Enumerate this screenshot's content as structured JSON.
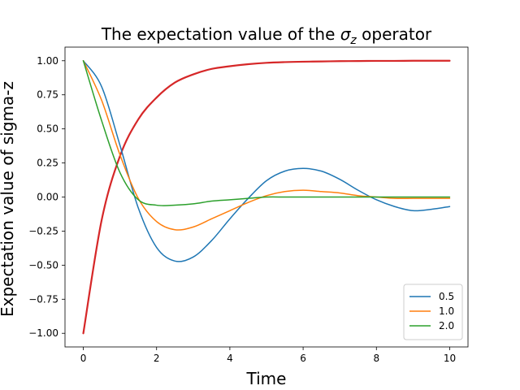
{
  "chart_data": {
    "type": "line",
    "title_main": "The expectation value of the ",
    "title_symbol": "σ",
    "title_subscript": "z",
    "title_end": " operator",
    "xlabel": "Time",
    "ylabel": "Expectation value of sigma-z",
    "xlim": [
      -0.5,
      10.5
    ],
    "ylim": [
      -1.1,
      1.1
    ],
    "xticks": [
      0,
      2,
      4,
      6,
      8,
      10
    ],
    "xtick_labels": [
      "0",
      "2",
      "4",
      "6",
      "8",
      "10"
    ],
    "yticks": [
      -1.0,
      -0.75,
      -0.5,
      -0.25,
      0.0,
      0.25,
      0.5,
      0.75,
      1.0
    ],
    "ytick_labels": [
      "−1.00",
      "−0.75",
      "−0.50",
      "−0.25",
      "0.00",
      "0.25",
      "0.50",
      "0.75",
      "1.00"
    ],
    "grid": false,
    "legend_position": "lower-right",
    "x": [
      0,
      0.5,
      1,
      1.5,
      2,
      2.5,
      3,
      3.5,
      4,
      4.5,
      5,
      5.5,
      6,
      6.5,
      7,
      7.5,
      8,
      8.5,
      9,
      9.5,
      10
    ],
    "series": [
      {
        "name": "0.5",
        "color": "#1f77b4",
        "width": 1.5,
        "in_legend": true,
        "values": [
          1.0,
          0.81,
          0.38,
          -0.08,
          -0.37,
          -0.47,
          -0.44,
          -0.32,
          -0.16,
          -0.01,
          0.12,
          0.19,
          0.21,
          0.19,
          0.13,
          0.05,
          -0.02,
          -0.07,
          -0.1,
          -0.09,
          -0.07
        ]
      },
      {
        "name": "1.0",
        "color": "#ff7f0e",
        "width": 1.5,
        "in_legend": true,
        "values": [
          1.0,
          0.71,
          0.31,
          -0.01,
          -0.18,
          -0.24,
          -0.22,
          -0.16,
          -0.1,
          -0.04,
          0.01,
          0.04,
          0.05,
          0.04,
          0.03,
          0.01,
          0.0,
          -0.01,
          -0.01,
          -0.01,
          -0.01
        ]
      },
      {
        "name": "2.0",
        "color": "#2ca02c",
        "width": 1.5,
        "in_legend": true,
        "values": [
          1.0,
          0.56,
          0.18,
          -0.02,
          -0.06,
          -0.06,
          -0.05,
          -0.03,
          -0.02,
          -0.01,
          0.0,
          0.0,
          0.0,
          0.0,
          0.0,
          0.0,
          0.0,
          0.0,
          0.0,
          0.0,
          0.0
        ]
      },
      {
        "name": "",
        "color": "#d62728",
        "width": 2.2,
        "in_legend": false,
        "values": [
          -1.0,
          -0.17,
          0.3,
          0.57,
          0.73,
          0.84,
          0.9,
          0.94,
          0.96,
          0.975,
          0.985,
          0.99,
          0.993,
          0.995,
          0.997,
          0.998,
          0.999,
          0.999,
          1.0,
          1.0,
          1.0
        ]
      }
    ]
  }
}
